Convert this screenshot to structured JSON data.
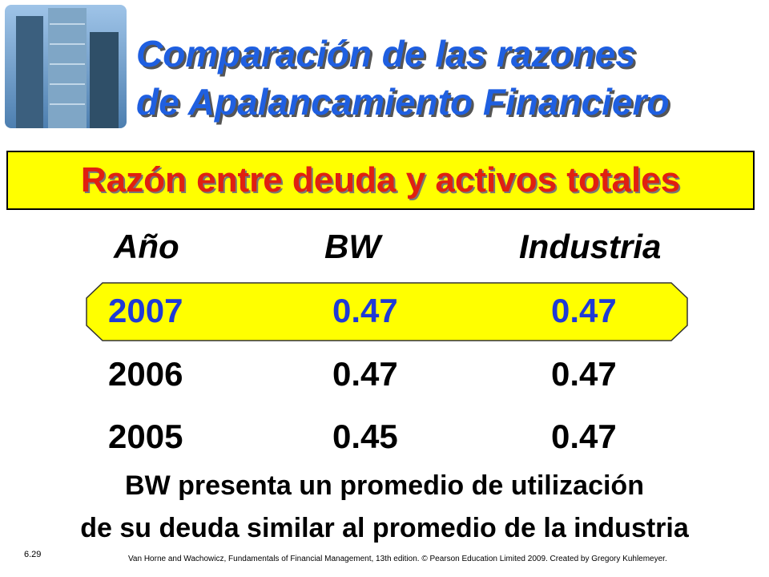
{
  "title": {
    "lines": [
      "Comparación de las razones",
      "de Apalancamiento Financiero"
    ]
  },
  "banner": "Razón entre deuda y activos totales",
  "table": {
    "header": [
      "Año",
      "BW",
      "Industria"
    ],
    "rows": [
      [
        "2007",
        "0.47",
        "0.47"
      ],
      [
        "2006",
        "0.47",
        "0.47"
      ],
      [
        "2005",
        "0.45",
        "0.47"
      ]
    ]
  },
  "conclusion": [
    "BW presenta un promedio de utilización",
    "de su deuda similar al promedio de la industria"
  ],
  "footer": {
    "slide_number": "6.29",
    "credit": "Van Horne and Wachowicz, Fundamentals of Financial Management, 13th edition. © Pearson Education Limited 2009. Created by Gregory Kuhlemeyer."
  }
}
